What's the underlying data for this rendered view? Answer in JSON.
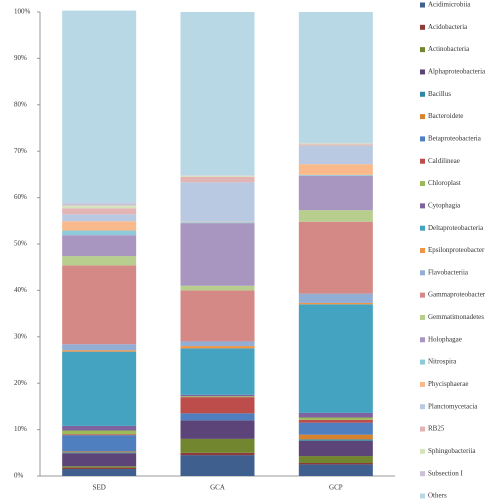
{
  "chart_data": {
    "type": "stacked_bar",
    "categories": [
      "SED",
      "GCA",
      "GCP"
    ],
    "ylim": [
      0,
      100
    ],
    "yticks": [
      {
        "value": 0,
        "label": "0%"
      },
      {
        "value": 10,
        "label": "10%"
      },
      {
        "value": 20,
        "label": "20%"
      },
      {
        "value": 30,
        "label": "30%"
      },
      {
        "value": 40,
        "label": "40%"
      },
      {
        "value": 50,
        "label": "50%"
      },
      {
        "value": 60,
        "label": "60%"
      },
      {
        "value": 70,
        "label": "70%"
      },
      {
        "value": 80,
        "label": "80%"
      },
      {
        "value": 90,
        "label": "90%"
      },
      {
        "value": 100,
        "label": "100%"
      }
    ],
    "legend": "right",
    "series": [
      {
        "name": "Acidimicrobiia",
        "color": "#3F5F8F",
        "values": [
          1.5,
          4.5,
          2.5
        ]
      },
      {
        "name": "Acidobacteria",
        "color": "#8E3B3A",
        "values": [
          0.3,
          0.5,
          0.3
        ]
      },
      {
        "name": "Actinobacteria",
        "color": "#71862F",
        "values": [
          0.3,
          3,
          1.5
        ]
      },
      {
        "name": "Alphaproteobacteria",
        "color": "#5D4478",
        "values": [
          2.8,
          4,
          3.3
        ]
      },
      {
        "name": "Bacillus",
        "color": "#2F87A3",
        "values": [
          0.2,
          0,
          0.3
        ]
      },
      {
        "name": "Bacteroidete",
        "color": "#D9822E",
        "values": [
          0.2,
          0,
          1
        ]
      },
      {
        "name": "Betaproteobacteria",
        "color": "#4F7FBF",
        "values": [
          3.5,
          1.5,
          2.6
        ]
      },
      {
        "name": "Caldilineae",
        "color": "#BD4D4A",
        "values": [
          0.2,
          3.5,
          0.6
        ]
      },
      {
        "name": "Chloroplast",
        "color": "#9BBB59",
        "values": [
          0.8,
          0.2,
          0.5
        ]
      },
      {
        "name": "Cytophagia",
        "color": "#7F63A1",
        "values": [
          1,
          0.3,
          1
        ]
      },
      {
        "name": "Deltaproteobacteria",
        "color": "#44A3C0",
        "values": [
          16,
          10,
          23.4
        ]
      },
      {
        "name": "Epsilonproteobacter",
        "color": "#F29443",
        "values": [
          0.3,
          0.5,
          0.3
        ]
      },
      {
        "name": "Flavobacteriia",
        "color": "#92AED5",
        "values": [
          1.3,
          1,
          2
        ]
      },
      {
        "name": "Gammaproteobacter",
        "color": "#D48986",
        "values": [
          17,
          11,
          15.5
        ]
      },
      {
        "name": "Gemmatimonadetes",
        "color": "#B8CE8E",
        "values": [
          2,
          1,
          2.5
        ]
      },
      {
        "name": "Holophagae",
        "color": "#A896C0",
        "values": [
          4.5,
          13.5,
          7.4
        ]
      },
      {
        "name": "Nitrospira",
        "color": "#8ECAD9",
        "values": [
          1,
          0.2,
          0.2
        ]
      },
      {
        "name": "Phycisphaerae",
        "color": "#F9B98A",
        "values": [
          2,
          0.1,
          2.3
        ]
      },
      {
        "name": "Planctomycetacia",
        "color": "#B9C9E2",
        "values": [
          1.5,
          8.5,
          4
        ]
      },
      {
        "name": "RB25",
        "color": "#E2B4B3",
        "values": [
          1.3,
          1.2,
          0.3
        ]
      },
      {
        "name": "Sphingobacteriia",
        "color": "#D6E3BC",
        "values": [
          0.6,
          0.2,
          0.2
        ]
      },
      {
        "name": "Subsection I",
        "color": "#CBC0DA",
        "values": [
          0.5,
          0.1,
          0.1
        ]
      },
      {
        "name": "Others",
        "color": "#B7D8E4",
        "values": [
          41.5,
          35.2,
          28.2
        ]
      }
    ]
  }
}
